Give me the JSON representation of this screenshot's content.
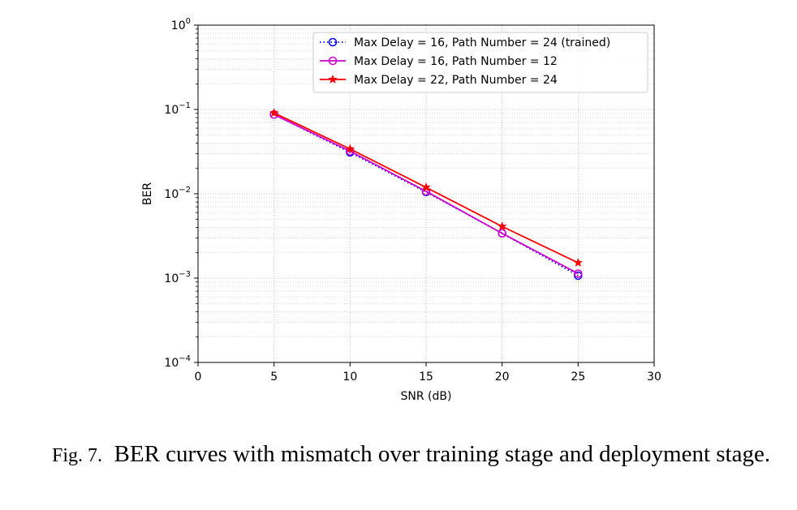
{
  "chart_data": {
    "type": "line",
    "title": "",
    "xlabel": "SNR (dB)",
    "ylabel": "BER",
    "xlim": [
      0,
      30
    ],
    "ylim": [
      0.0001,
      1
    ],
    "yscale": "log",
    "grid": "both (major and minor), dotted",
    "legend_position": "upper right",
    "x_ticks": [
      "0",
      "5",
      "10",
      "15",
      "20",
      "25",
      "30"
    ],
    "y_ticks": [
      {
        "base": "10",
        "exp": "0"
      },
      {
        "base": "10",
        "exp": "−1"
      },
      {
        "base": "10",
        "exp": "−2"
      },
      {
        "base": "10",
        "exp": "−3"
      },
      {
        "base": "10",
        "exp": "−4"
      }
    ],
    "x": [
      5,
      10,
      15,
      20,
      25
    ],
    "series": [
      {
        "name": "Max Delay = 16, Path Number = 24 (trained)",
        "color": "#0000ff",
        "line_style": "dotted",
        "marker": "open-circle",
        "values": [
          0.087,
          0.031,
          0.0105,
          0.0034,
          0.00107
        ]
      },
      {
        "name": "Max Delay = 16, Path Number = 12",
        "color": "#cc00cc",
        "line_style": "solid",
        "marker": "open-circle",
        "values": [
          0.087,
          0.032,
          0.0107,
          0.0034,
          0.00113
        ]
      },
      {
        "name": "Max Delay = 22, Path Number = 24",
        "color": "#ff0000",
        "line_style": "solid",
        "marker": "star",
        "values": [
          0.091,
          0.034,
          0.0119,
          0.0041,
          0.00152
        ]
      }
    ]
  },
  "caption": {
    "label": "Fig. 7.",
    "text": "BER curves with mismatch over training stage and deployment stage."
  }
}
